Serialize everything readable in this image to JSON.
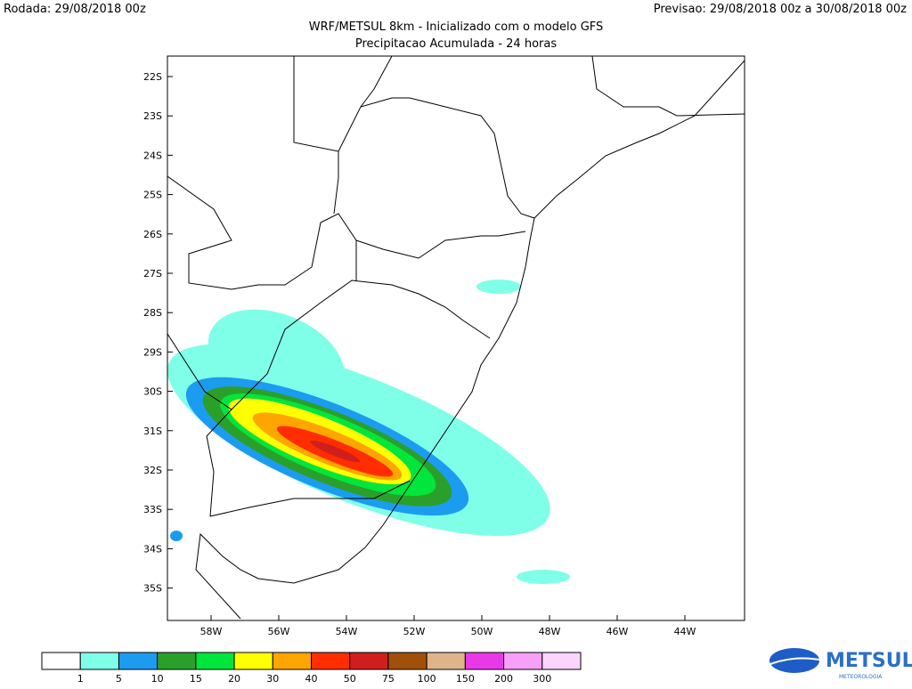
{
  "header": {
    "run": "Rodada: 29/08/2018 00z",
    "forecast": "Previsao: 29/08/2018 00z a 30/08/2018 00z",
    "title": "WRF/METSUL 8km - Inicializado com o modelo GFS",
    "subtitle": "Precipitacao Acumulada - 24 horas"
  },
  "map": {
    "lat_labels": [
      "22S",
      "23S",
      "24S",
      "25S",
      "26S",
      "27S",
      "28S",
      "29S",
      "30S",
      "31S",
      "32S",
      "33S",
      "34S",
      "35S"
    ],
    "lon_labels": [
      "58W",
      "56W",
      "54W",
      "52W",
      "50W",
      "48W",
      "46W",
      "44W"
    ]
  },
  "colorbar": {
    "labels": [
      "1",
      "5",
      "10",
      "15",
      "20",
      "30",
      "40",
      "50",
      "75",
      "100",
      "150",
      "200",
      "300"
    ],
    "colors": [
      "#ffffff",
      "#80ffe8",
      "#1c9cf0",
      "#2aa02a",
      "#00e63c",
      "#ffff00",
      "#ffa500",
      "#ff2d00",
      "#d01e1e",
      "#a0500a",
      "#e0b48a",
      "#e838e8",
      "#f8a0f8",
      "#fcd4fc"
    ]
  },
  "logo": {
    "name": "METSUL",
    "tagline": "METEOROLOGIA"
  }
}
